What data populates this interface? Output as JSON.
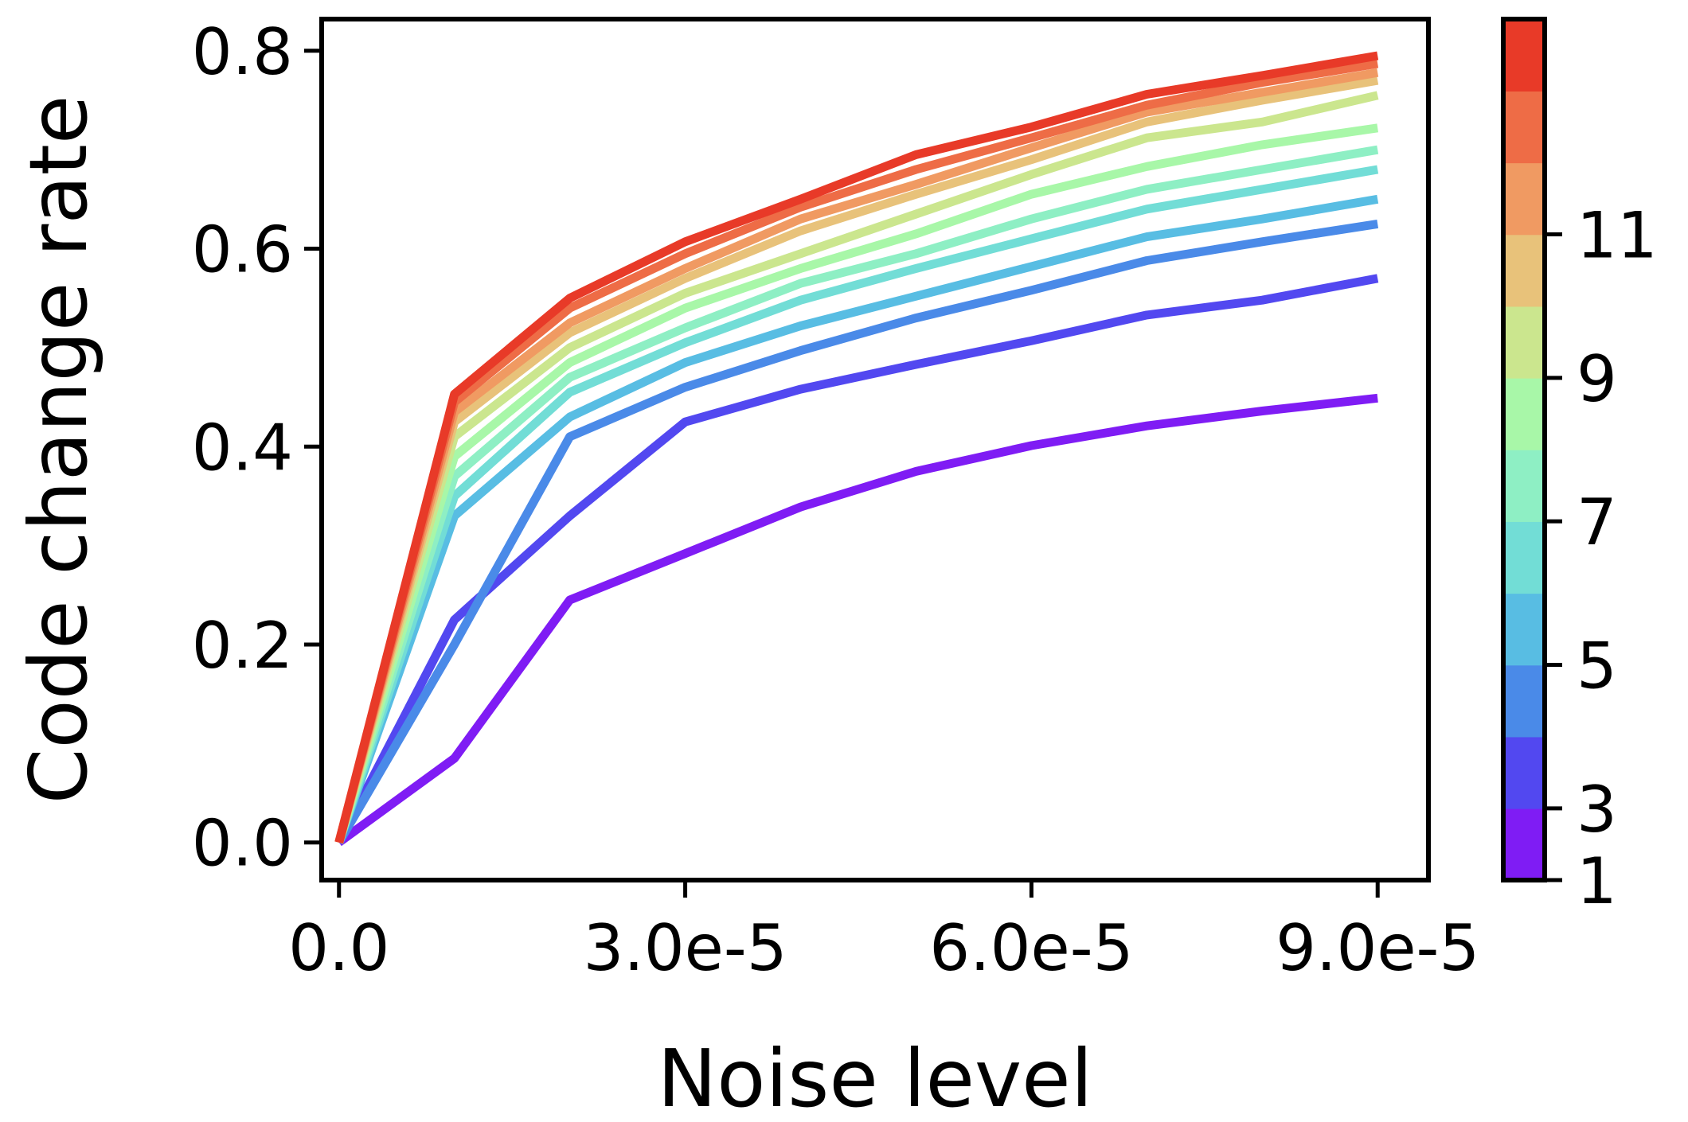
{
  "chart_data": {
    "type": "line",
    "xlabel": "Noise level",
    "ylabel": "Code change rate",
    "xlim": [
      -1.5e-06,
      9.44e-05
    ],
    "ylim": [
      -0.038,
      0.832
    ],
    "x": [
      0,
      1e-05,
      2e-05,
      3e-05,
      4e-05,
      5e-05,
      6e-05,
      7e-05,
      8e-05,
      9e-05
    ],
    "xticks": [
      0,
      3e-05,
      6e-05,
      9e-05
    ],
    "xtick_labels": [
      "0.0",
      "3.0e-5",
      "6.0e-5",
      "9.0e-5"
    ],
    "yticks": [
      0.0,
      0.2,
      0.4,
      0.6,
      0.8
    ],
    "ytick_labels": [
      "0.0",
      "0.2",
      "0.4",
      "0.6",
      "0.8"
    ],
    "series": [
      {
        "name": "1",
        "color": "#7f1cf4",
        "values": [
          0,
          0.085,
          0.245,
          0.292,
          0.339,
          0.375,
          0.401,
          0.421,
          0.436,
          0.449
        ]
      },
      {
        "name": "2",
        "color": "#5248f0",
        "values": [
          0,
          0.225,
          0.33,
          0.425,
          0.458,
          0.483,
          0.507,
          0.533,
          0.548,
          0.57
        ]
      },
      {
        "name": "3",
        "color": "#4a8ae8",
        "values": [
          0,
          0.2,
          0.41,
          0.46,
          0.497,
          0.53,
          0.558,
          0.588,
          0.607,
          0.625
        ]
      },
      {
        "name": "4",
        "color": "#58bde3",
        "values": [
          0,
          0.33,
          0.43,
          0.485,
          0.522,
          0.552,
          0.582,
          0.612,
          0.63,
          0.65
        ]
      },
      {
        "name": "5",
        "color": "#72ddd6",
        "values": [
          0,
          0.35,
          0.455,
          0.505,
          0.548,
          0.58,
          0.61,
          0.64,
          0.66,
          0.68
        ]
      },
      {
        "name": "6",
        "color": "#8eefc4",
        "values": [
          0,
          0.37,
          0.47,
          0.52,
          0.565,
          0.595,
          0.63,
          0.66,
          0.68,
          0.7
        ]
      },
      {
        "name": "7",
        "color": "#a8f7a8",
        "values": [
          0,
          0.39,
          0.485,
          0.54,
          0.58,
          0.615,
          0.655,
          0.683,
          0.705,
          0.722
        ]
      },
      {
        "name": "8",
        "color": "#cbe68e",
        "values": [
          0,
          0.41,
          0.5,
          0.555,
          0.595,
          0.635,
          0.675,
          0.712,
          0.728,
          0.755
        ]
      },
      {
        "name": "9",
        "color": "#e8c27a",
        "values": [
          0,
          0.425,
          0.515,
          0.57,
          0.618,
          0.655,
          0.69,
          0.728,
          0.75,
          0.77
        ]
      },
      {
        "name": "10",
        "color": "#f09a62",
        "values": [
          0,
          0.435,
          0.525,
          0.58,
          0.63,
          0.665,
          0.702,
          0.738,
          0.758,
          0.778
        ]
      },
      {
        "name": "11",
        "color": "#ee6c46",
        "values": [
          0,
          0.445,
          0.54,
          0.595,
          0.642,
          0.68,
          0.712,
          0.745,
          0.768,
          0.787
        ]
      },
      {
        "name": "12",
        "color": "#e83a28",
        "values": [
          0,
          0.453,
          0.55,
          0.607,
          0.65,
          0.695,
          0.723,
          0.756,
          0.775,
          0.795
        ]
      }
    ],
    "colorbar": {
      "colors": [
        "#7f1cf4",
        "#5248f0",
        "#4a8ae8",
        "#58bde3",
        "#72ddd6",
        "#8eefc4",
        "#a8f7a8",
        "#cbe68e",
        "#e8c27a",
        "#f09a62",
        "#ee6c46",
        "#e83a28"
      ],
      "tick_labels": [
        "1",
        "3",
        "5",
        "7",
        "9",
        "11"
      ]
    }
  }
}
